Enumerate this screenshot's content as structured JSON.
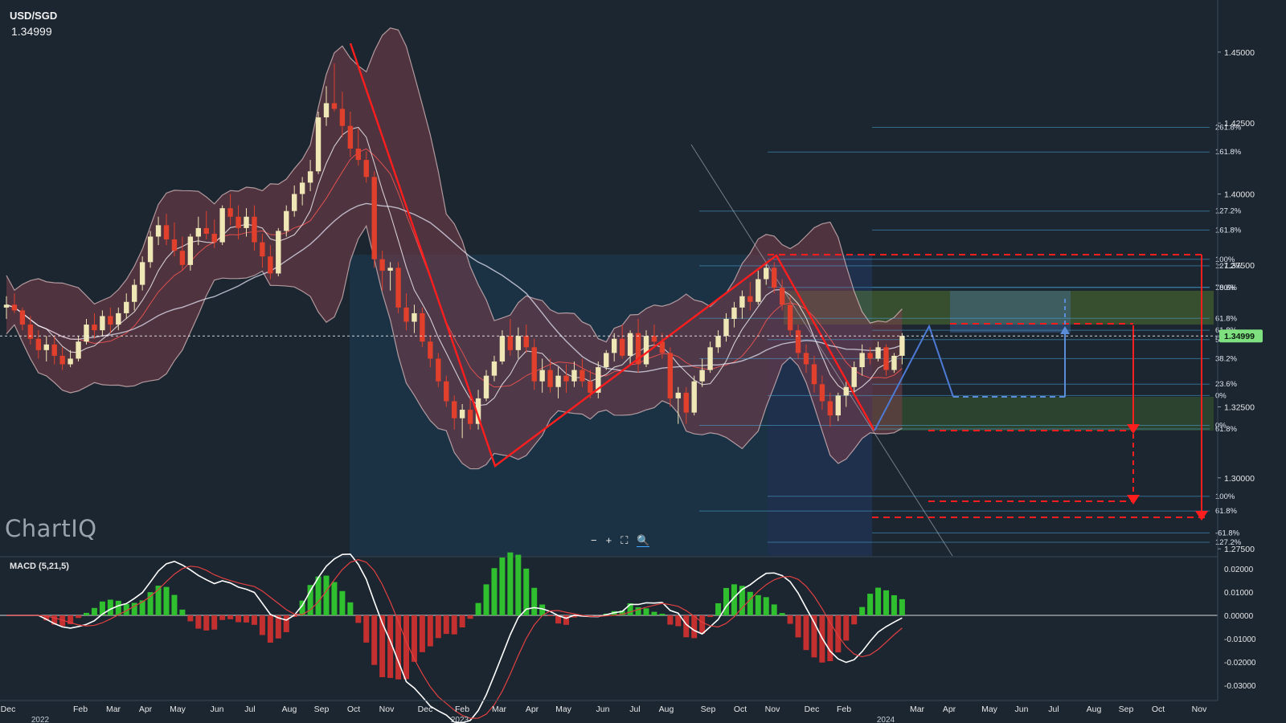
{
  "header": {
    "symbol": "USD/SGD",
    "last_price": "1.34999"
  },
  "logo_text": "ChartIQ",
  "macd_label": "MACD (5,21,5)",
  "zoom_controls": [
    "−",
    "+",
    "⛶",
    "🔍"
  ],
  "colors": {
    "background": "#1b2631",
    "bull_candle": "#efe7b6",
    "bear_candle": "#e0402c",
    "bollinger_fill": "#7a3e4a",
    "trend_line": "#ff1e1e",
    "fib_line": "#4aa6d8",
    "macd_up": "#2fbf2f",
    "macd_down": "#c43030",
    "price_tag": "#7ee07e"
  },
  "chart_data": {
    "type": "candlestick",
    "timeframe": "weekly",
    "price_axis": [
      "1.45000",
      "1.42500",
      "1.40000",
      "1.37500",
      "1.35000",
      "1.32500",
      "1.30000",
      "1.27500"
    ],
    "current_price_tag": "1.34999",
    "ylim": [
      1.2725,
      1.4542
    ],
    "macd_axis": [
      "0.02000",
      "0.01000",
      "0.00000",
      "-0.01000",
      "-0.02000",
      "-0.03000"
    ],
    "x_month_labels": [
      "Dec",
      "Feb",
      "Mar",
      "Apr",
      "May",
      "Jun",
      "Jul",
      "Aug",
      "Sep",
      "Oct",
      "Nov",
      "Dec",
      "Feb",
      "Mar",
      "Apr",
      "May",
      "Jun",
      "Jul",
      "Aug",
      "Sep",
      "Oct",
      "Nov",
      "Dec",
      "Feb",
      "Mar",
      "Apr",
      "May",
      "Jun",
      "Jul",
      "Aug",
      "Sep",
      "Oct",
      "Nov"
    ],
    "x_year_labels": [
      "2022",
      "2023",
      "2024"
    ],
    "fib_labels": [
      {
        "text": "261.8%",
        "price": 1.4235
      },
      {
        "text": "161.8%",
        "price": 1.4148
      },
      {
        "text": "127.2%",
        "price": 1.394
      },
      {
        "text": "161.8%",
        "price": 1.3873
      },
      {
        "text": "100%",
        "price": 1.377
      },
      {
        "text": "127.2%",
        "price": 1.3747
      },
      {
        "text": "100%",
        "price": 1.3671
      },
      {
        "text": "78.6%",
        "price": 1.3671
      },
      {
        "text": "61.8%",
        "price": 1.3562
      },
      {
        "text": "61.8%",
        "price": 1.352
      },
      {
        "text": "50%",
        "price": 1.3487
      },
      {
        "text": "38.2%",
        "price": 1.342
      },
      {
        "text": "23.6%",
        "price": 1.333
      },
      {
        "text": "0%",
        "price": 1.329
      },
      {
        "text": "0%",
        "price": 1.3185
      },
      {
        "text": "61.8%",
        "price": 1.3172
      },
      {
        "text": "100%",
        "price": 1.2935
      },
      {
        "text": "61.8%",
        "price": 1.2883
      },
      {
        "text": "-61.8%",
        "price": 1.2806
      },
      {
        "text": "127.2%",
        "price": 1.2773
      }
    ],
    "candles": [
      [
        1.36,
        1.364,
        1.356,
        1.361
      ],
      [
        1.361,
        1.365,
        1.358,
        1.359
      ],
      [
        1.359,
        1.36,
        1.352,
        1.354
      ],
      [
        1.354,
        1.357,
        1.347,
        1.349
      ],
      [
        1.349,
        1.352,
        1.342,
        1.345
      ],
      [
        1.345,
        1.35,
        1.341,
        1.347
      ],
      [
        1.347,
        1.35,
        1.34,
        1.343
      ],
      [
        1.343,
        1.346,
        1.338,
        1.34
      ],
      [
        1.34,
        1.345,
        1.339,
        1.342
      ],
      [
        1.342,
        1.35,
        1.341,
        1.348
      ],
      [
        1.348,
        1.356,
        1.347,
        1.354
      ],
      [
        1.354,
        1.358,
        1.349,
        1.352
      ],
      [
        1.352,
        1.359,
        1.35,
        1.357
      ],
      [
        1.357,
        1.36,
        1.351,
        1.354
      ],
      [
        1.354,
        1.36,
        1.352,
        1.358
      ],
      [
        1.358,
        1.365,
        1.356,
        1.362
      ],
      [
        1.362,
        1.37,
        1.359,
        1.368
      ],
      [
        1.368,
        1.378,
        1.366,
        1.376
      ],
      [
        1.376,
        1.387,
        1.374,
        1.385
      ],
      [
        1.385,
        1.392,
        1.382,
        1.389
      ],
      [
        1.389,
        1.393,
        1.382,
        1.384
      ],
      [
        1.384,
        1.39,
        1.378,
        1.38
      ],
      [
        1.38,
        1.385,
        1.373,
        1.375
      ],
      [
        1.375,
        1.386,
        1.373,
        1.385
      ],
      [
        1.385,
        1.392,
        1.382,
        1.388
      ],
      [
        1.388,
        1.394,
        1.384,
        1.386
      ],
      [
        1.386,
        1.391,
        1.381,
        1.383
      ],
      [
        1.383,
        1.396,
        1.382,
        1.395
      ],
      [
        1.395,
        1.4,
        1.389,
        1.392
      ],
      [
        1.392,
        1.396,
        1.384,
        1.388
      ],
      [
        1.388,
        1.395,
        1.385,
        1.392
      ],
      [
        1.392,
        1.396,
        1.38,
        1.383
      ],
      [
        1.383,
        1.386,
        1.374,
        1.378
      ],
      [
        1.378,
        1.382,
        1.37,
        1.372
      ],
      [
        1.372,
        1.388,
        1.371,
        1.387
      ],
      [
        1.387,
        1.396,
        1.385,
        1.394
      ],
      [
        1.394,
        1.403,
        1.392,
        1.4
      ],
      [
        1.4,
        1.406,
        1.396,
        1.404
      ],
      [
        1.404,
        1.412,
        1.401,
        1.408
      ],
      [
        1.408,
        1.429,
        1.407,
        1.427
      ],
      [
        1.427,
        1.438,
        1.424,
        1.432
      ],
      [
        1.432,
        1.446,
        1.429,
        1.43
      ],
      [
        1.43,
        1.436,
        1.42,
        1.424
      ],
      [
        1.424,
        1.429,
        1.413,
        1.416
      ],
      [
        1.416,
        1.423,
        1.41,
        1.412
      ],
      [
        1.412,
        1.415,
        1.404,
        1.406
      ],
      [
        1.406,
        1.408,
        1.374,
        1.377
      ],
      [
        1.377,
        1.38,
        1.366,
        1.373
      ],
      [
        1.373,
        1.376,
        1.366,
        1.374
      ],
      [
        1.374,
        1.376,
        1.358,
        1.36
      ],
      [
        1.36,
        1.365,
        1.352,
        1.355
      ],
      [
        1.355,
        1.361,
        1.351,
        1.358
      ],
      [
        1.358,
        1.36,
        1.346,
        1.348
      ],
      [
        1.348,
        1.35,
        1.339,
        1.342
      ],
      [
        1.342,
        1.344,
        1.332,
        1.334
      ],
      [
        1.334,
        1.336,
        1.325,
        1.327
      ],
      [
        1.327,
        1.329,
        1.317,
        1.321
      ],
      [
        1.321,
        1.326,
        1.314,
        1.324
      ],
      [
        1.324,
        1.33,
        1.317,
        1.319
      ],
      [
        1.319,
        1.331,
        1.317,
        1.328
      ],
      [
        1.328,
        1.338,
        1.327,
        1.336
      ],
      [
        1.336,
        1.343,
        1.334,
        1.341
      ],
      [
        1.341,
        1.352,
        1.34,
        1.35
      ],
      [
        1.35,
        1.356,
        1.343,
        1.345
      ],
      [
        1.345,
        1.353,
        1.342,
        1.35
      ],
      [
        1.35,
        1.354,
        1.344,
        1.346
      ],
      [
        1.346,
        1.349,
        1.331,
        1.334
      ],
      [
        1.334,
        1.342,
        1.33,
        1.338
      ],
      [
        1.338,
        1.342,
        1.33,
        1.332
      ],
      [
        1.332,
        1.339,
        1.328,
        1.336
      ],
      [
        1.336,
        1.34,
        1.33,
        1.334
      ],
      [
        1.334,
        1.341,
        1.332,
        1.338
      ],
      [
        1.338,
        1.342,
        1.332,
        1.334
      ],
      [
        1.334,
        1.338,
        1.328,
        1.33
      ],
      [
        1.33,
        1.341,
        1.328,
        1.339
      ],
      [
        1.339,
        1.345,
        1.338,
        1.344
      ],
      [
        1.344,
        1.351,
        1.341,
        1.349
      ],
      [
        1.349,
        1.354,
        1.342,
        1.343
      ],
      [
        1.343,
        1.352,
        1.34,
        1.351
      ],
      [
        1.351,
        1.356,
        1.337,
        1.34
      ],
      [
        1.34,
        1.352,
        1.339,
        1.35
      ],
      [
        1.35,
        1.354,
        1.346,
        1.348
      ],
      [
        1.348,
        1.351,
        1.342,
        1.344
      ],
      [
        1.344,
        1.346,
        1.325,
        1.328
      ],
      [
        1.328,
        1.332,
        1.319,
        1.33
      ],
      [
        1.33,
        1.332,
        1.319,
        1.323
      ],
      [
        1.323,
        1.336,
        1.322,
        1.334
      ],
      [
        1.334,
        1.342,
        1.332,
        1.338
      ],
      [
        1.338,
        1.348,
        1.337,
        1.346
      ],
      [
        1.346,
        1.352,
        1.344,
        1.35
      ],
      [
        1.35,
        1.358,
        1.348,
        1.356
      ],
      [
        1.356,
        1.362,
        1.353,
        1.36
      ],
      [
        1.36,
        1.366,
        1.356,
        1.364
      ],
      [
        1.364,
        1.369,
        1.359,
        1.362
      ],
      [
        1.362,
        1.373,
        1.361,
        1.37
      ],
      [
        1.37,
        1.376,
        1.368,
        1.374
      ],
      [
        1.374,
        1.376,
        1.365,
        1.367
      ],
      [
        1.367,
        1.37,
        1.359,
        1.361
      ],
      [
        1.361,
        1.364,
        1.35,
        1.352
      ],
      [
        1.352,
        1.354,
        1.342,
        1.344
      ],
      [
        1.344,
        1.347,
        1.337,
        1.34
      ],
      [
        1.34,
        1.343,
        1.33,
        1.333
      ],
      [
        1.333,
        1.336,
        1.324,
        1.327
      ],
      [
        1.327,
        1.33,
        1.318,
        1.322
      ],
      [
        1.322,
        1.33,
        1.32,
        1.329
      ],
      [
        1.329,
        1.334,
        1.325,
        1.332
      ],
      [
        1.332,
        1.341,
        1.33,
        1.339
      ],
      [
        1.339,
        1.347,
        1.336,
        1.344
      ],
      [
        1.344,
        1.346,
        1.34,
        1.342
      ],
      [
        1.342,
        1.348,
        1.341,
        1.346
      ],
      [
        1.346,
        1.347,
        1.336,
        1.338
      ],
      [
        1.338,
        1.344,
        1.337,
        1.343
      ],
      [
        1.343,
        1.351,
        1.34,
        1.35
      ]
    ]
  }
}
